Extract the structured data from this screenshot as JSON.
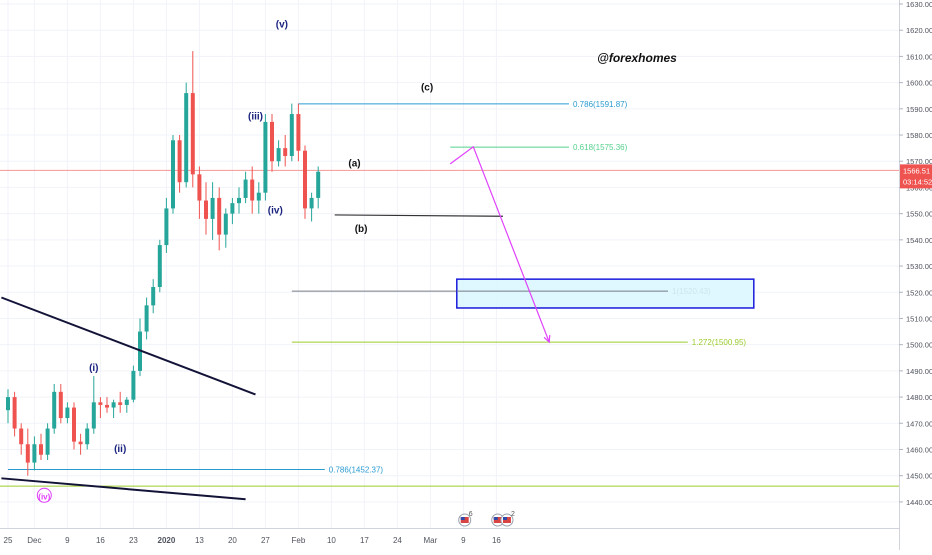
{
  "chart_data": {
    "type": "candlestick",
    "watermark": "@forexhomes",
    "ylim": [
      1435,
      1630
    ],
    "y_ticks": [
      1630,
      1620,
      1610,
      1600,
      1590,
      1580,
      1570,
      1560,
      1550,
      1540,
      1530,
      1520,
      1510,
      1500,
      1490,
      1480,
      1470,
      1460,
      1450,
      1440
    ],
    "y_tick_labels": [
      "1630.00",
      "1620.00",
      "1610.00",
      "1600.00",
      "1590.00",
      "1580.00",
      "1570.00",
      "1560.00",
      "1550.00",
      "1540.00",
      "1530.00",
      "1520.00",
      "1510.00",
      "1500.00",
      "1490.00",
      "1480.00",
      "1470.00",
      "1460.00",
      "1450.00",
      "1440.00"
    ],
    "x_labels": [
      "25",
      "Dec",
      "9",
      "16",
      "23",
      "2020",
      "13",
      "20",
      "27",
      "Feb",
      "10",
      "17",
      "24",
      "Mar",
      "9",
      "16"
    ],
    "x_label_index": [
      0,
      4,
      9,
      14,
      19,
      24,
      29,
      34,
      39,
      44,
      49,
      54,
      59,
      64,
      69,
      74
    ],
    "bold_x_labels": [
      "2020"
    ],
    "current_price": {
      "value": 1566.51,
      "label": "1566.51",
      "countdown": "03:14:52",
      "color": "#ef5350"
    },
    "candles": [
      {
        "o": 1475,
        "h": 1483,
        "l": 1470,
        "c": 1480
      },
      {
        "o": 1480,
        "h": 1482,
        "l": 1465,
        "c": 1468
      },
      {
        "o": 1468,
        "h": 1470,
        "l": 1458,
        "c": 1462
      },
      {
        "o": 1462,
        "h": 1468,
        "l": 1450,
        "c": 1455
      },
      {
        "o": 1455,
        "h": 1465,
        "l": 1452,
        "c": 1462
      },
      {
        "o": 1462,
        "h": 1466,
        "l": 1456,
        "c": 1458
      },
      {
        "o": 1458,
        "h": 1470,
        "l": 1456,
        "c": 1468
      },
      {
        "o": 1468,
        "h": 1485,
        "l": 1466,
        "c": 1482
      },
      {
        "o": 1482,
        "h": 1485,
        "l": 1470,
        "c": 1472
      },
      {
        "o": 1472,
        "h": 1478,
        "l": 1470,
        "c": 1476
      },
      {
        "o": 1476,
        "h": 1478,
        "l": 1460,
        "c": 1463
      },
      {
        "o": 1463,
        "h": 1466,
        "l": 1458,
        "c": 1462
      },
      {
        "o": 1462,
        "h": 1470,
        "l": 1460,
        "c": 1468
      },
      {
        "o": 1468,
        "h": 1488,
        "l": 1466,
        "c": 1478
      },
      {
        "o": 1478,
        "h": 1480,
        "l": 1472,
        "c": 1477
      },
      {
        "o": 1477,
        "h": 1480,
        "l": 1474,
        "c": 1476
      },
      {
        "o": 1476,
        "h": 1479,
        "l": 1472,
        "c": 1478
      },
      {
        "o": 1478,
        "h": 1482,
        "l": 1474,
        "c": 1477
      },
      {
        "o": 1477,
        "h": 1480,
        "l": 1474,
        "c": 1479
      },
      {
        "o": 1479,
        "h": 1492,
        "l": 1478,
        "c": 1490
      },
      {
        "o": 1490,
        "h": 1510,
        "l": 1488,
        "c": 1505
      },
      {
        "o": 1505,
        "h": 1518,
        "l": 1502,
        "c": 1515
      },
      {
        "o": 1515,
        "h": 1525,
        "l": 1512,
        "c": 1522
      },
      {
        "o": 1522,
        "h": 1540,
        "l": 1520,
        "c": 1538
      },
      {
        "o": 1538,
        "h": 1556,
        "l": 1535,
        "c": 1552
      },
      {
        "o": 1552,
        "h": 1580,
        "l": 1550,
        "c": 1578
      },
      {
        "o": 1578,
        "h": 1580,
        "l": 1558,
        "c": 1562
      },
      {
        "o": 1562,
        "h": 1600,
        "l": 1560,
        "c": 1596
      },
      {
        "o": 1596,
        "h": 1612,
        "l": 1560,
        "c": 1565
      },
      {
        "o": 1565,
        "h": 1568,
        "l": 1548,
        "c": 1555
      },
      {
        "o": 1555,
        "h": 1562,
        "l": 1542,
        "c": 1548
      },
      {
        "o": 1548,
        "h": 1562,
        "l": 1540,
        "c": 1556
      },
      {
        "o": 1556,
        "h": 1560,
        "l": 1536,
        "c": 1542
      },
      {
        "o": 1542,
        "h": 1552,
        "l": 1537,
        "c": 1550
      },
      {
        "o": 1550,
        "h": 1556,
        "l": 1546,
        "c": 1554
      },
      {
        "o": 1554,
        "h": 1560,
        "l": 1550,
        "c": 1556
      },
      {
        "o": 1556,
        "h": 1566,
        "l": 1554,
        "c": 1563
      },
      {
        "o": 1563,
        "h": 1568,
        "l": 1550,
        "c": 1555
      },
      {
        "o": 1555,
        "h": 1562,
        "l": 1550,
        "c": 1558
      },
      {
        "o": 1558,
        "h": 1588,
        "l": 1555,
        "c": 1585
      },
      {
        "o": 1585,
        "h": 1588,
        "l": 1566,
        "c": 1570
      },
      {
        "o": 1570,
        "h": 1578,
        "l": 1568,
        "c": 1575
      },
      {
        "o": 1575,
        "h": 1580,
        "l": 1568,
        "c": 1572
      },
      {
        "o": 1572,
        "h": 1592,
        "l": 1570,
        "c": 1588
      },
      {
        "o": 1588,
        "h": 1592,
        "l": 1570,
        "c": 1574
      },
      {
        "o": 1574,
        "h": 1576,
        "l": 1548,
        "c": 1552
      },
      {
        "o": 1552,
        "h": 1558,
        "l": 1547,
        "c": 1556
      },
      {
        "o": 1556,
        "h": 1568,
        "l": 1552,
        "c": 1566
      }
    ],
    "fib_levels": [
      {
        "label": "0.786(1591.87)",
        "value": 1591.87,
        "color": "#2a9bd1",
        "x_from": 44,
        "x_to": 85
      },
      {
        "label": "0.618(1575.36)",
        "value": 1575.36,
        "color": "#55d18e",
        "x_from": 67,
        "x_to": 85
      },
      {
        "label": "1(1520.43)",
        "value": 1520.43,
        "color": "#787b86",
        "x_from": 43,
        "x_to": 100
      },
      {
        "label": "1.272(1500.95)",
        "value": 1500.95,
        "color": "#9ccc2d",
        "x_from": 43,
        "x_to": 103
      },
      {
        "label": "0.786(1452.37)",
        "value": 1452.37,
        "color": "#2a9bd1",
        "x_from": 0,
        "x_to": 48
      }
    ],
    "horizontal_line": {
      "value": 1446,
      "color": "#9ccc2d"
    },
    "target_zone": {
      "from": 1514,
      "to": 1525,
      "x_from": 68,
      "x_to": 113,
      "fill": "#d9f7ff",
      "border": "#1a1adb"
    },
    "trendlines": [
      {
        "x1": -1,
        "y1": 1518,
        "x2": 37.5,
        "y2": 1481,
        "color": "#131338"
      },
      {
        "x1": -1,
        "y1": 1449,
        "x2": 36,
        "y2": 1441,
        "color": "#131338"
      },
      {
        "x1": 49.5,
        "y1": 1549.5,
        "x2": 75,
        "y2": 1549,
        "color": "#333333"
      }
    ],
    "projection": {
      "color": "#e040fb",
      "points": [
        [
          67,
          1569
        ],
        [
          70.5,
          1575.5
        ],
        [
          82,
          1501
        ]
      ]
    },
    "wave_labels": [
      {
        "text": "(i)",
        "x": 13,
        "y": 1490,
        "color": "#1a237e"
      },
      {
        "text": "(ii)",
        "x": 17,
        "y": 1459,
        "color": "#1a237e"
      },
      {
        "text": "(iii)",
        "x": 37.5,
        "y": 1586,
        "color": "#1a237e"
      },
      {
        "text": "(iv)",
        "x": 40.5,
        "y": 1550,
        "color": "#1a237e"
      },
      {
        "text": "(v)",
        "x": 41.5,
        "y": 1621,
        "color": "#1a237e"
      },
      {
        "text": "(a)",
        "x": 52.5,
        "y": 1568,
        "color": "#111111"
      },
      {
        "text": "(b)",
        "x": 53.5,
        "y": 1543,
        "color": "#111111"
      },
      {
        "text": "(c)",
        "x": 63.5,
        "y": 1597,
        "color": "#111111"
      },
      {
        "text": "(iv)",
        "x": 5.5,
        "y": 1441,
        "color": "#e040fb",
        "circled": true
      }
    ],
    "events": [
      {
        "x": 69.2,
        "count": "6"
      },
      {
        "x": 74.2,
        "count": ""
      },
      {
        "x": 75.6,
        "count": "2"
      }
    ]
  }
}
